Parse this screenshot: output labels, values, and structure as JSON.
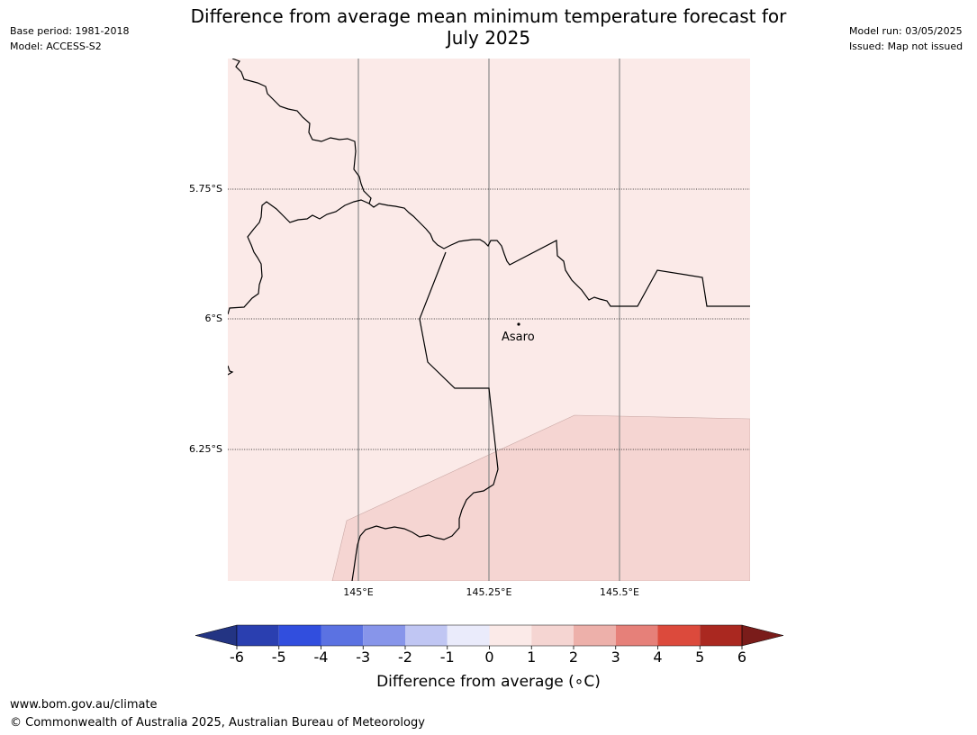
{
  "header": {
    "title_line1": "Difference from average mean minimum temperature forecast for",
    "title_line2": "July 2025",
    "base_period": "Base period: 1981-2018",
    "model": "Model: ACCESS-S2",
    "model_run": "Model run: 03/05/2025",
    "issued": "Issued: Map not issued"
  },
  "map": {
    "latitude_labels": [
      "5.75°S",
      "6°S",
      "6.25°S"
    ],
    "longitude_labels": [
      "145°E",
      "145.25°E",
      "145.5°E"
    ],
    "place": {
      "name": "Asaro",
      "marker": "dot"
    },
    "background_anomaly_bin": "0 to 1",
    "southeast_anomaly_bin": "1 to 2"
  },
  "colorbar": {
    "ticks": [
      "-6",
      "-5",
      "-4",
      "-3",
      "-2",
      "-1",
      "0",
      "1",
      "2",
      "3",
      "4",
      "5",
      "6"
    ],
    "bins": [
      {
        "range": "< -6",
        "color": "#233483"
      },
      {
        "range": "-6 to -5",
        "color": "#2a3fb0"
      },
      {
        "range": "-5 to -4",
        "color": "#314ede"
      },
      {
        "range": "-4 to -3",
        "color": "#5b72e2"
      },
      {
        "range": "-3 to -2",
        "color": "#8795ea"
      },
      {
        "range": "-2 to -1",
        "color": "#c0c6f3"
      },
      {
        "range": "-1 to 0",
        "color": "#eaebfb"
      },
      {
        "range": "0 to 1",
        "color": "#fbeae8"
      },
      {
        "range": "1 to 2",
        "color": "#f5d5d2"
      },
      {
        "range": "2 to 3",
        "color": "#edb0aa"
      },
      {
        "range": "3 to 4",
        "color": "#e68079"
      },
      {
        "range": "4 to 5",
        "color": "#dc4a3c"
      },
      {
        "range": "5 to 6",
        "color": "#aa2820"
      },
      {
        "range": "> 6",
        "color": "#7a1c1a"
      }
    ],
    "label": "Difference from average (∘C)"
  },
  "footer": {
    "url": "www.bom.gov.au/climate",
    "copyright": "© Commonwealth of Australia 2025, Australian Bureau of Meteorology"
  }
}
